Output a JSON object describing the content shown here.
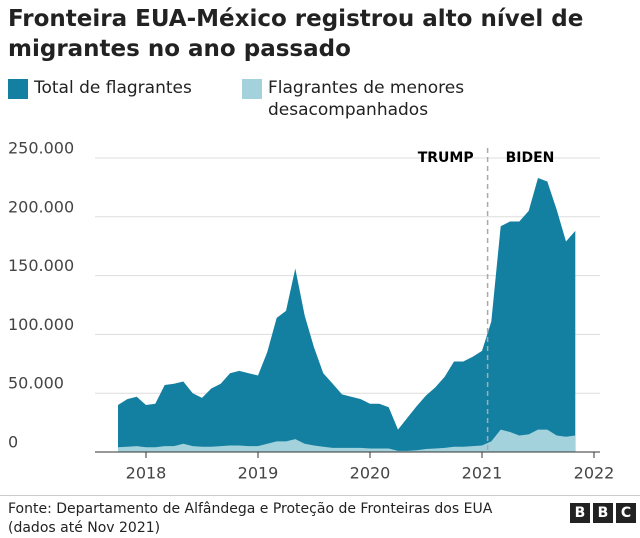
{
  "chart_data": {
    "type": "area",
    "title": "Fronteira EUA-México registrou alto nível de migrantes no ano passado",
    "x": [
      2017.75,
      2017.833,
      2017.917,
      2018.0,
      2018.083,
      2018.167,
      2018.25,
      2018.333,
      2018.417,
      2018.5,
      2018.583,
      2018.667,
      2018.75,
      2018.833,
      2018.917,
      2019.0,
      2019.083,
      2019.167,
      2019.25,
      2019.333,
      2019.417,
      2019.5,
      2019.583,
      2019.667,
      2019.75,
      2019.833,
      2019.917,
      2020.0,
      2020.083,
      2020.167,
      2020.25,
      2020.333,
      2020.417,
      2020.5,
      2020.583,
      2020.667,
      2020.75,
      2020.833,
      2020.917,
      2021.0,
      2021.083,
      2021.167,
      2021.25,
      2021.333,
      2021.417,
      2021.5,
      2021.583,
      2021.667,
      2021.75,
      2021.833
    ],
    "series": [
      {
        "name": "Total de flagrantes",
        "color": "#1380a1",
        "values": [
          40000,
          45000,
          47000,
          40000,
          41000,
          57000,
          58000,
          60000,
          50000,
          46000,
          54000,
          58000,
          67000,
          69000,
          67000,
          65000,
          85000,
          114000,
          120000,
          156000,
          116000,
          89000,
          67000,
          58000,
          49000,
          47000,
          45000,
          41000,
          41000,
          38000,
          19000,
          29000,
          39000,
          48000,
          55000,
          64000,
          77000,
          77000,
          81000,
          86000,
          111000,
          192000,
          196000,
          196000,
          205000,
          233000,
          230000,
          206000,
          179000,
          188000
        ]
      },
      {
        "name": "Flagrantes de menores desacompanhados",
        "color": "#a3d2dc",
        "values": [
          4000,
          4500,
          5000,
          4000,
          4000,
          5000,
          5000,
          7000,
          5000,
          4500,
          4500,
          5000,
          5500,
          5500,
          5000,
          5000,
          7000,
          9000,
          9000,
          11000,
          7000,
          5500,
          4500,
          3500,
          3500,
          3500,
          3500,
          3000,
          3000,
          3000,
          1000,
          1000,
          1500,
          2500,
          3000,
          3500,
          4500,
          4500,
          5000,
          5500,
          9000,
          19000,
          17000,
          14000,
          15000,
          19000,
          19000,
          14000,
          13000,
          14000
        ]
      }
    ],
    "xlim": [
      2017.6,
      2022.05
    ],
    "xticks": [
      2018,
      2019,
      2020,
      2021,
      2022
    ],
    "ylim": [
      0,
      250000
    ],
    "yticks": [
      0,
      {
        "value": 50000,
        "label": "50.000"
      },
      {
        "value": 100000,
        "label": "100.000"
      },
      {
        "value": 150000,
        "label": "150.000"
      },
      {
        "value": 200000,
        "label": "200.000"
      },
      {
        "value": 250000,
        "label": "250.000"
      }
    ],
    "grid": true,
    "annotations": [
      {
        "text": "TRUMP",
        "x": 2021.05
      },
      {
        "text": "BIDEN",
        "x": 2021.05
      }
    ],
    "source": "Fonte: Departamento de Alfândega e Proteção de Fronteiras dos EUA (dados até Nov 2021)",
    "logo": [
      "B",
      "B",
      "C"
    ]
  }
}
